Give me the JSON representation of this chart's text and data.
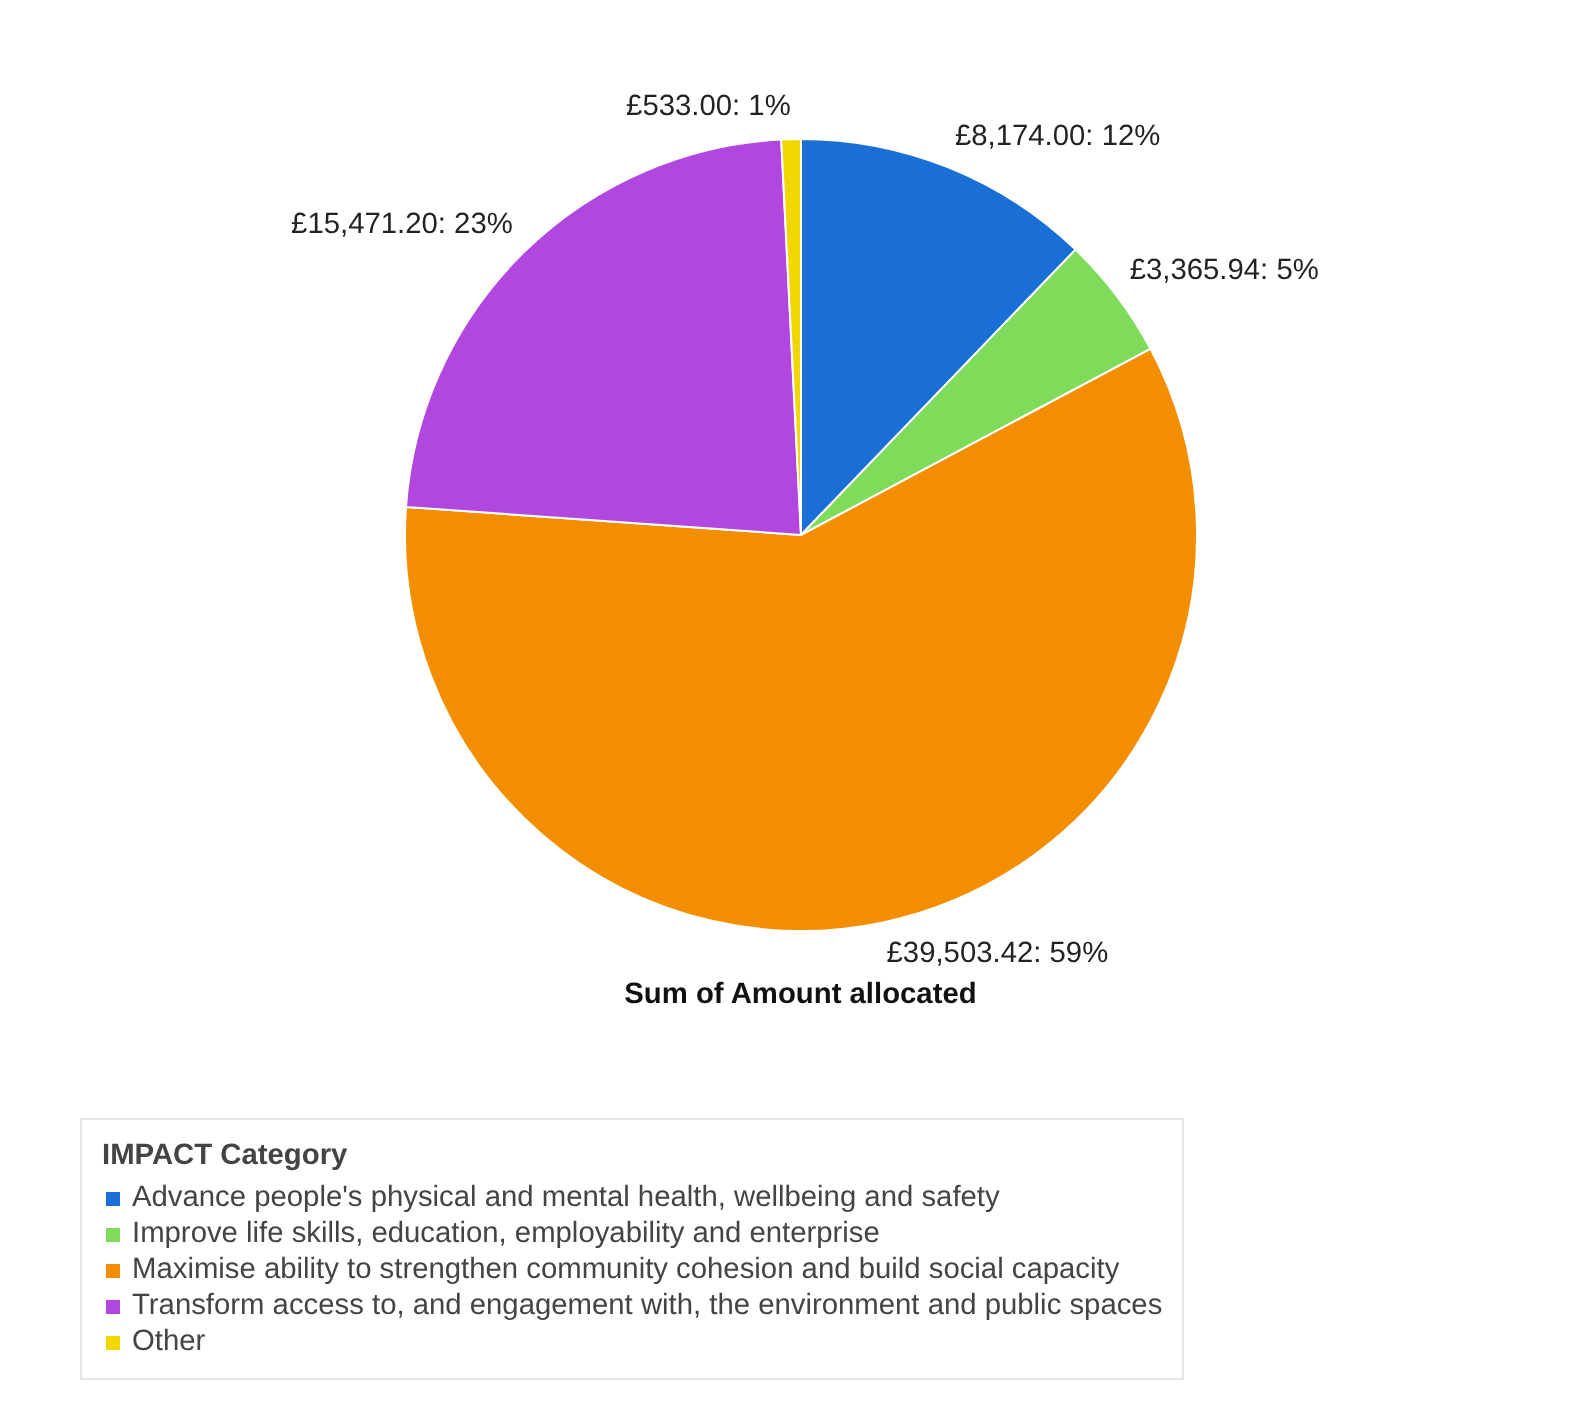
{
  "chart_data": {
    "type": "pie",
    "title": "Sum of Amount allocated",
    "legend_title": "IMPACT Category",
    "categories": [
      "Advance people's physical and mental health, wellbeing and safety",
      "Improve life skills, education, employability and enterprise",
      "Maximise ability to strengthen community cohesion and build social capacity",
      "Transform access to, and engagement with, the environment and public spaces",
      "Other"
    ],
    "values": [
      8174.0,
      3365.94,
      39503.42,
      15471.2,
      533.0
    ],
    "colors": [
      "#1a6fd6",
      "#7fdc5a",
      "#f28e00",
      "#b247e0",
      "#f2d600"
    ],
    "value_labels": [
      "£8,174.00: 12%",
      "£3,365.94: 5%",
      "£39,503.42: 59%",
      "£15,471.20: 23%",
      "£533.00: 1%"
    ],
    "legend": "bottom"
  }
}
